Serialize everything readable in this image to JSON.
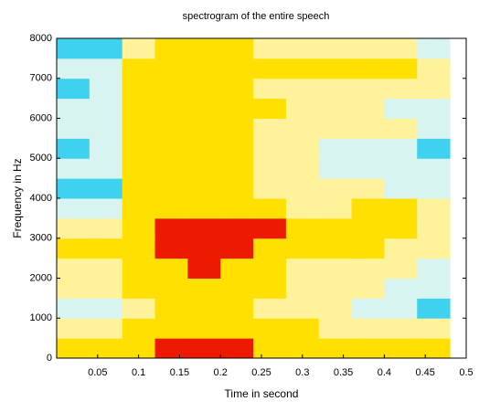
{
  "chart_data": {
    "type": "heatmap",
    "title": "spectrogram of the entire speech",
    "x_label": "Time in second",
    "y_label": "Frequency in Hz",
    "title_color": "#3ec8e6",
    "xlim": [
      0,
      0.5
    ],
    "ylim": [
      0,
      8000
    ],
    "xticks": [
      0.05,
      0.1,
      0.15,
      0.2,
      0.25,
      0.3,
      0.35,
      0.4,
      0.45,
      0.5
    ],
    "yticks": [
      0,
      1000,
      2000,
      3000,
      4000,
      5000,
      6000,
      7000,
      8000
    ],
    "xbins": [
      0,
      0.04,
      0.08,
      0.12,
      0.16,
      0.2,
      0.24,
      0.28,
      0.32,
      0.36,
      0.4,
      0.44,
      0.48
    ],
    "ybins": [
      0,
      500,
      1000,
      1500,
      2000,
      2500,
      3000,
      3500,
      4000,
      4500,
      5000,
      5500,
      6000,
      6500,
      7000,
      7500,
      8000
    ],
    "colors": [
      "#3fd2f0",
      "#d8f4f0",
      "#fff29a",
      "#ffe000",
      "#ee1a00"
    ],
    "z": [
      [
        3,
        3,
        3,
        4,
        4,
        4,
        3,
        3,
        3,
        3,
        3,
        3
      ],
      [
        2,
        2,
        3,
        3,
        3,
        3,
        3,
        3,
        2,
        2,
        2,
        2
      ],
      [
        1,
        1,
        2,
        3,
        3,
        3,
        2,
        2,
        2,
        1,
        1,
        0
      ],
      [
        2,
        2,
        3,
        3,
        3,
        3,
        3,
        2,
        2,
        2,
        1,
        1
      ],
      [
        2,
        2,
        3,
        3,
        4,
        3,
        3,
        2,
        2,
        2,
        2,
        1
      ],
      [
        3,
        3,
        3,
        4,
        4,
        4,
        3,
        3,
        3,
        3,
        2,
        2
      ],
      [
        2,
        2,
        3,
        4,
        4,
        4,
        4,
        3,
        3,
        3,
        3,
        2
      ],
      [
        1,
        1,
        3,
        3,
        3,
        3,
        3,
        2,
        2,
        3,
        3,
        2
      ],
      [
        0,
        0,
        3,
        3,
        3,
        3,
        2,
        2,
        2,
        2,
        1,
        1
      ],
      [
        1,
        1,
        3,
        3,
        3,
        3,
        2,
        2,
        1,
        1,
        1,
        1
      ],
      [
        0,
        1,
        3,
        3,
        3,
        3,
        2,
        2,
        1,
        1,
        1,
        0
      ],
      [
        1,
        1,
        3,
        3,
        3,
        3,
        2,
        2,
        2,
        2,
        2,
        1
      ],
      [
        1,
        1,
        3,
        3,
        3,
        3,
        3,
        2,
        2,
        2,
        1,
        1
      ],
      [
        0,
        1,
        3,
        3,
        3,
        3,
        2,
        2,
        2,
        2,
        2,
        2
      ],
      [
        1,
        1,
        3,
        3,
        3,
        3,
        3,
        3,
        3,
        3,
        3,
        2
      ],
      [
        0,
        0,
        2,
        3,
        3,
        3,
        2,
        2,
        2,
        2,
        2,
        1
      ]
    ]
  }
}
